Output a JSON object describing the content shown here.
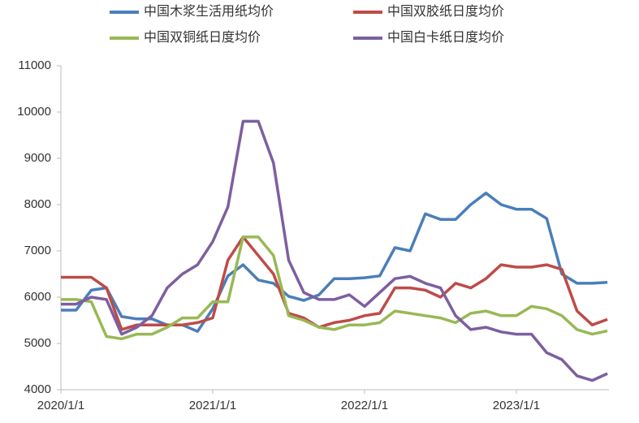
{
  "chart_data": {
    "type": "line",
    "x": [
      2020.0,
      2020.1,
      2020.2,
      2020.3,
      2020.4,
      2020.5,
      2020.6,
      2020.7,
      2020.8,
      2020.9,
      2021.0,
      2021.1,
      2021.2,
      2021.3,
      2021.4,
      2021.5,
      2021.6,
      2021.7,
      2021.8,
      2021.9,
      2022.0,
      2022.1,
      2022.2,
      2022.3,
      2022.4,
      2022.5,
      2022.6,
      2022.7,
      2022.8,
      2022.9,
      2023.0,
      2023.1,
      2023.2,
      2023.3,
      2023.4,
      2023.5,
      2023.6
    ],
    "series": [
      {
        "name": "中国木浆生活用纸均价",
        "color": "#4a7ebb",
        "values": [
          5720,
          5720,
          6150,
          6200,
          5580,
          5530,
          5530,
          5400,
          5400,
          5260,
          5750,
          6460,
          6700,
          6370,
          6300,
          6020,
          5930,
          6050,
          6400,
          6400,
          6420,
          6460,
          7070,
          7000,
          7800,
          7680,
          7680,
          8000,
          8250,
          8000,
          7900,
          7900,
          7700,
          6500,
          6300,
          6300,
          6320
        ]
      },
      {
        "name": "中国双胶纸日度均价",
        "color": "#be4b48",
        "values": [
          6430,
          6430,
          6430,
          6200,
          5300,
          5400,
          5400,
          5400,
          5400,
          5450,
          5550,
          6800,
          7300,
          6900,
          6500,
          5650,
          5550,
          5350,
          5450,
          5500,
          5600,
          5650,
          6200,
          6200,
          6150,
          6000,
          6300,
          6200,
          6400,
          6700,
          6650,
          6650,
          6700,
          6600,
          5700,
          5400,
          5520
        ]
      },
      {
        "name": "中国双铜纸日度均价",
        "color": "#98b954",
        "values": [
          5950,
          5950,
          5900,
          5150,
          5100,
          5200,
          5200,
          5350,
          5550,
          5550,
          5900,
          5900,
          7300,
          7300,
          6900,
          5600,
          5500,
          5350,
          5300,
          5400,
          5400,
          5450,
          5700,
          5650,
          5600,
          5550,
          5450,
          5650,
          5700,
          5600,
          5600,
          5800,
          5750,
          5600,
          5300,
          5200,
          5270
        ]
      },
      {
        "name": "中国白卡纸日度均价",
        "color": "#7d5fa0",
        "values": [
          5850,
          5850,
          6000,
          5950,
          5200,
          5350,
          5600,
          6200,
          6500,
          6700,
          7200,
          7950,
          9800,
          9800,
          8900,
          6800,
          6100,
          5950,
          5950,
          6050,
          5800,
          6100,
          6400,
          6450,
          6300,
          6200,
          5600,
          5300,
          5350,
          5250,
          5200,
          5200,
          4800,
          4650,
          4300,
          4200,
          4350
        ]
      }
    ],
    "xlim": [
      2020.0,
      2023.61
    ],
    "xticks": [
      {
        "value": 2020,
        "label": "2020/1/1"
      },
      {
        "value": 2021,
        "label": "2021/1/1"
      },
      {
        "value": 2022,
        "label": "2022/1/1"
      },
      {
        "value": 2023,
        "label": "2023/1/1"
      }
    ],
    "ylim": [
      4000,
      11000
    ],
    "yticks": [
      4000,
      5000,
      6000,
      7000,
      8000,
      9000,
      10000,
      11000
    ],
    "grid": false
  }
}
